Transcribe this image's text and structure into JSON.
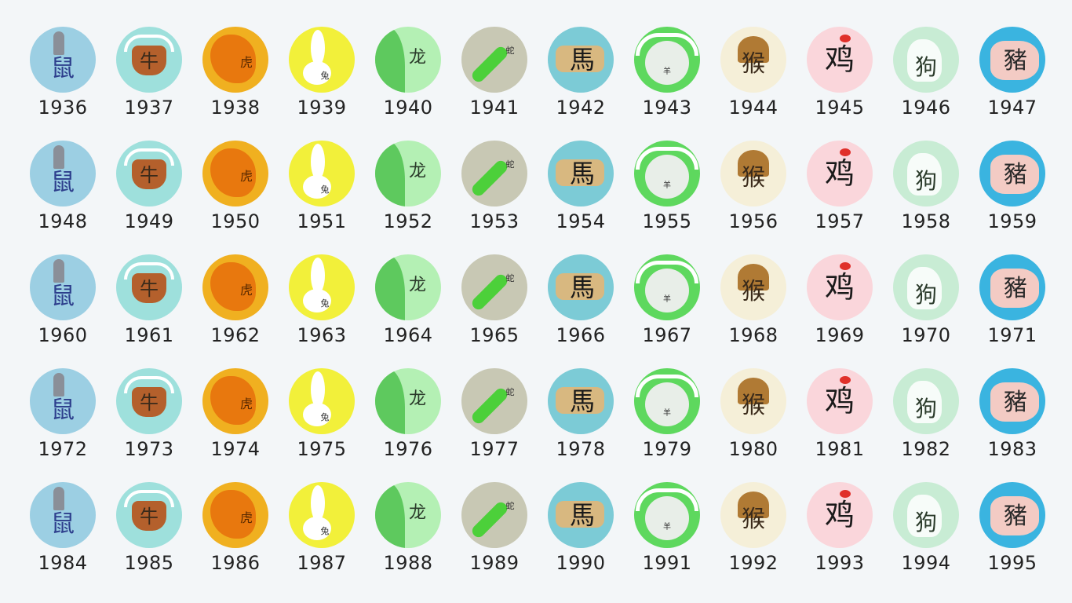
{
  "animals": [
    {
      "key": "rat",
      "glyph": "鼠",
      "bg": "#9ccfe3",
      "color": "#2d3e8c"
    },
    {
      "key": "ox",
      "glyph": "牛",
      "bg": "#9ee0dc",
      "color": "#3a2a1a"
    },
    {
      "key": "tiger",
      "glyph": "虎",
      "bg": "#f0b020",
      "color": "#5a2a00"
    },
    {
      "key": "rabbit",
      "glyph": "兔",
      "bg": "#f2f03a",
      "color": "#333333"
    },
    {
      "key": "dragon",
      "glyph": "龙",
      "bg": "#b4f0b4",
      "color": "#2a3a2a"
    },
    {
      "key": "snake",
      "glyph": "蛇",
      "bg": "#c8c8b4",
      "color": "#2a2a2a"
    },
    {
      "key": "horse",
      "glyph": "馬",
      "bg": "#7ccbd6",
      "color": "#1a1a1a"
    },
    {
      "key": "goat",
      "glyph": "羊",
      "bg": "#5ed85e",
      "color": "#333333"
    },
    {
      "key": "monkey",
      "glyph": "猴",
      "bg": "#f5efd8",
      "color": "#3a2a1a"
    },
    {
      "key": "rooster",
      "glyph": "鸡",
      "bg": "#fad6db",
      "color": "#1a1a1a"
    },
    {
      "key": "dog",
      "glyph": "狗",
      "bg": "#c8ecd4",
      "color": "#2a3a2a"
    },
    {
      "key": "pig",
      "glyph": "豬",
      "bg": "#3ab4e0",
      "color": "#2a2a2a"
    }
  ],
  "years": [
    [
      "1936",
      "1937",
      "1938",
      "1939",
      "1940",
      "1941",
      "1942",
      "1943",
      "1944",
      "1945",
      "1946",
      "1947"
    ],
    [
      "1948",
      "1949",
      "1950",
      "1951",
      "1952",
      "1953",
      "1954",
      "1955",
      "1956",
      "1957",
      "1958",
      "1959"
    ],
    [
      "1960",
      "1961",
      "1962",
      "1963",
      "1964",
      "1965",
      "1966",
      "1967",
      "1968",
      "1969",
      "1970",
      "1971"
    ],
    [
      "1972",
      "1973",
      "1974",
      "1975",
      "1976",
      "1977",
      "1978",
      "1979",
      "1980",
      "1981",
      "1982",
      "1983"
    ],
    [
      "1984",
      "1985",
      "1986",
      "1987",
      "1988",
      "1989",
      "1990",
      "1991",
      "1992",
      "1993",
      "1994",
      "1995"
    ]
  ]
}
